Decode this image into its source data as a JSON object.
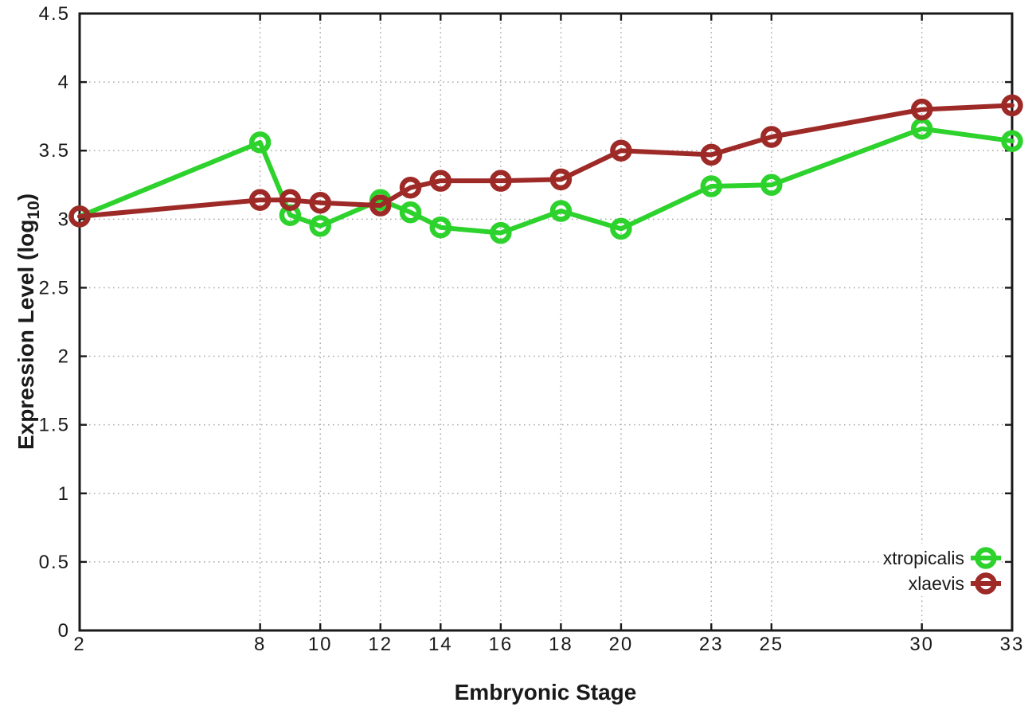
{
  "chart_data": {
    "type": "line",
    "title": "",
    "xlabel": "Embryonic Stage",
    "ylabel": "Expression Level (log10)",
    "ylabel_parts": {
      "pre": "Expression Level (log",
      "sub": "10",
      "post": ")"
    },
    "xlim": [
      2,
      33
    ],
    "ylim": [
      0,
      4.5
    ],
    "xticks": [
      2,
      8,
      10,
      12,
      14,
      16,
      18,
      20,
      23,
      25,
      30,
      33
    ],
    "xtick_labels": [
      "2",
      "8",
      "10",
      "12",
      "14",
      "16",
      "18",
      "20",
      "23",
      "25",
      "30",
      "33"
    ],
    "yticks": [
      0,
      0.5,
      1,
      1.5,
      2,
      2.5,
      3,
      3.5,
      4,
      4.5
    ],
    "ytick_labels": [
      "0",
      "0.5",
      "1",
      "1.5",
      "2",
      "2.5",
      "3",
      "3.5",
      "4",
      "4.5"
    ],
    "grid": true,
    "legend_position": "bottom-right",
    "x": [
      2,
      8,
      9,
      10,
      12,
      13,
      14,
      16,
      18,
      20,
      23,
      25,
      30,
      33
    ],
    "series": [
      {
        "name": "xtropicalis",
        "color": "#2dd22d",
        "values": [
          3.02,
          3.56,
          3.03,
          2.95,
          3.14,
          3.05,
          2.94,
          2.9,
          3.06,
          2.93,
          3.24,
          3.25,
          3.66,
          3.57
        ]
      },
      {
        "name": "xlaevis",
        "color": "#9e2a28",
        "values": [
          3.02,
          3.14,
          3.14,
          3.12,
          3.1,
          3.23,
          3.28,
          3.28,
          3.29,
          3.5,
          3.47,
          3.6,
          3.8,
          3.83
        ]
      }
    ]
  },
  "colors": {
    "background": "#ffffff",
    "axis": "#1a1a1a",
    "grid": "#aaaaaa",
    "xtropicalis": "#2dd22d",
    "xlaevis": "#9e2a28"
  }
}
